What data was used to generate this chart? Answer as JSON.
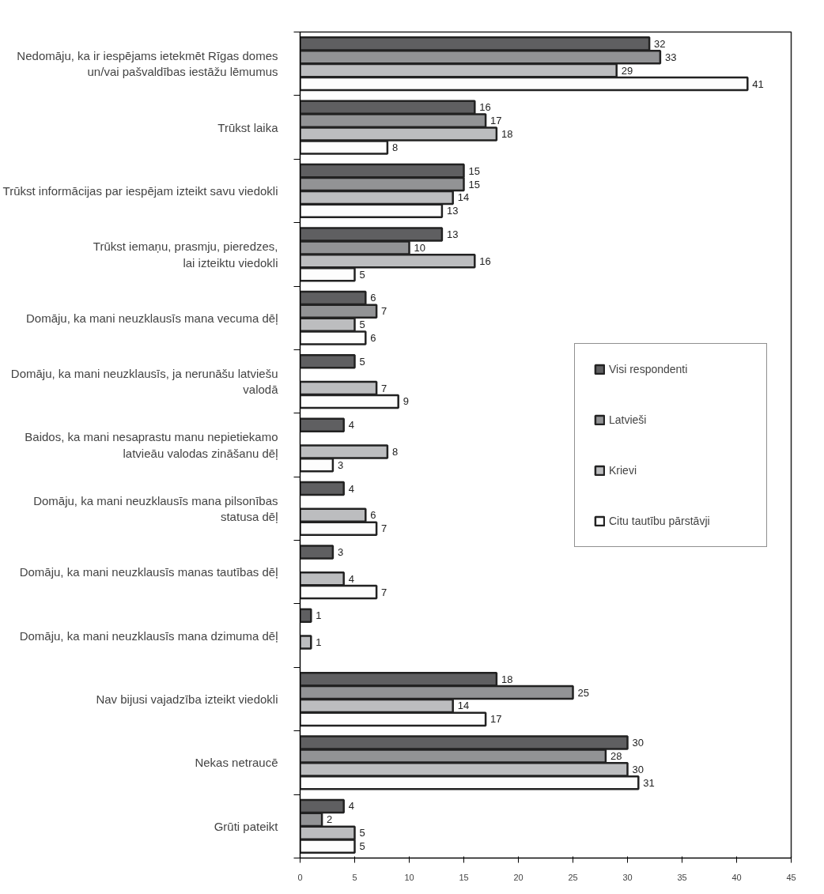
{
  "chart_data": {
    "type": "bar",
    "orientation": "horizontal",
    "categories": [
      "Nedomāju, ka ir iespējams ietekmēt Rīgas domes\nun/vai pašvaldības iestāžu lēmumus",
      "Trūkst laika",
      "Trūkst informācijas par iespējam izteikt savu viedokli",
      "Trūkst iemaņu, prasmju, pieredzes,\nlai izteiktu viedokli",
      "Domāju, ka mani neuzklausīs mana vecuma dēļ",
      "Domāju, ka mani neuzklausīs, ja nerunāšu latviešu\nvalodā",
      "Baidos, ka mani nesaprastu manu nepietiekamo\nlatvieāu valodas zināšanu dēļ",
      "Domāju, ka mani neuzklausīs mana pilsonības\nstatusa dēļ",
      "Domāju, ka mani neuzklausīs manas tautības dēļ",
      "Domāju, ka mani neuzklausīs mana dzimuma dēļ",
      "Nav bijusi vajadzība izteikt viedokli",
      "Nekas netraucē",
      "Grūti pateikt"
    ],
    "series": [
      {
        "name": "Visi respondenti",
        "color": "#5f5f61",
        "values": [
          32,
          16,
          15,
          13,
          6,
          5,
          4,
          4,
          3,
          1,
          18,
          30,
          4
        ]
      },
      {
        "name": "Latvieši",
        "color": "#929395",
        "values": [
          33,
          17,
          15,
          10,
          7,
          null,
          null,
          null,
          null,
          null,
          25,
          28,
          2
        ]
      },
      {
        "name": "Krievi",
        "color": "#bcbdbf",
        "values": [
          29,
          18,
          14,
          16,
          5,
          7,
          8,
          6,
          4,
          1,
          14,
          30,
          5
        ]
      },
      {
        "name": "Citu tautību pārstāvji",
        "color": "#fdfdfd",
        "values": [
          41,
          8,
          13,
          5,
          6,
          9,
          3,
          7,
          7,
          null,
          17,
          31,
          5
        ]
      }
    ],
    "xlim": [
      0,
      45
    ],
    "xticks": [
      0,
      5,
      10,
      15,
      20,
      25,
      30,
      35,
      40,
      45
    ],
    "data_labels": true,
    "legend": "right",
    "grid": false
  }
}
